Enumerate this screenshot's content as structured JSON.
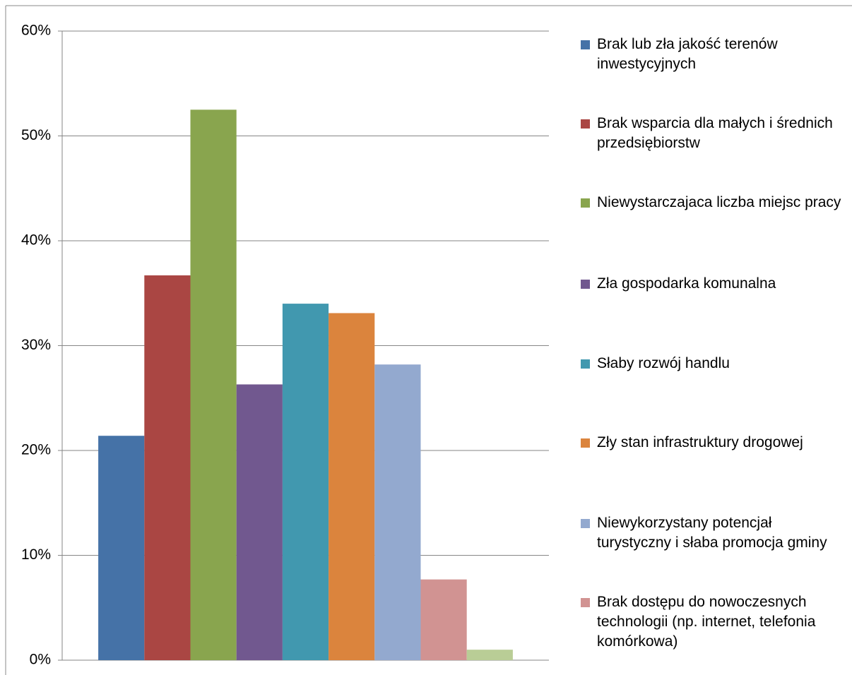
{
  "chart_data": {
    "type": "bar",
    "series": [
      {
        "name": "Brak lub zła jakość terenów inwestycyjnych",
        "color": "#4572a7",
        "values": [
          21.4
        ]
      },
      {
        "name": "Brak wsparcia dla małych i średnich przedsiębiorstw",
        "color": "#aa4643",
        "values": [
          36.7
        ]
      },
      {
        "name": "Niewystarczajaca liczba miejsc pracy",
        "color": "#89a54e",
        "values": [
          52.5
        ]
      },
      {
        "name": "Zła gospodarka komunalna",
        "color": "#71588f",
        "values": [
          26.3
        ]
      },
      {
        "name": "Słaby rozwój handlu",
        "color": "#4198af",
        "values": [
          34.0
        ]
      },
      {
        "name": "Zły stan infrastruktury drogowej",
        "color": "#db843d",
        "values": [
          33.1
        ]
      },
      {
        "name": "Niewykorzystany potencjał turystyczny i słaba promocja gminy",
        "color": "#93a9cf",
        "values": [
          28.2
        ]
      },
      {
        "name": "Brak dostępu do nowoczesnych technologii (np. internet, telefonia komórkowa)",
        "color": "#d19392",
        "values": [
          7.7
        ]
      },
      {
        "color": "#b9cd96",
        "values": [
          1.0
        ]
      }
    ],
    "ylim": [
      0,
      60
    ],
    "yticks": [
      {
        "value": 0,
        "label": "0%"
      },
      {
        "value": 10,
        "label": "10%"
      },
      {
        "value": 20,
        "label": "20%"
      },
      {
        "value": 30,
        "label": "30%"
      },
      {
        "value": 40,
        "label": "40%"
      },
      {
        "value": 50,
        "label": "50%"
      },
      {
        "value": 60,
        "label": "60%"
      }
    ],
    "grid": true,
    "legend": "right"
  }
}
